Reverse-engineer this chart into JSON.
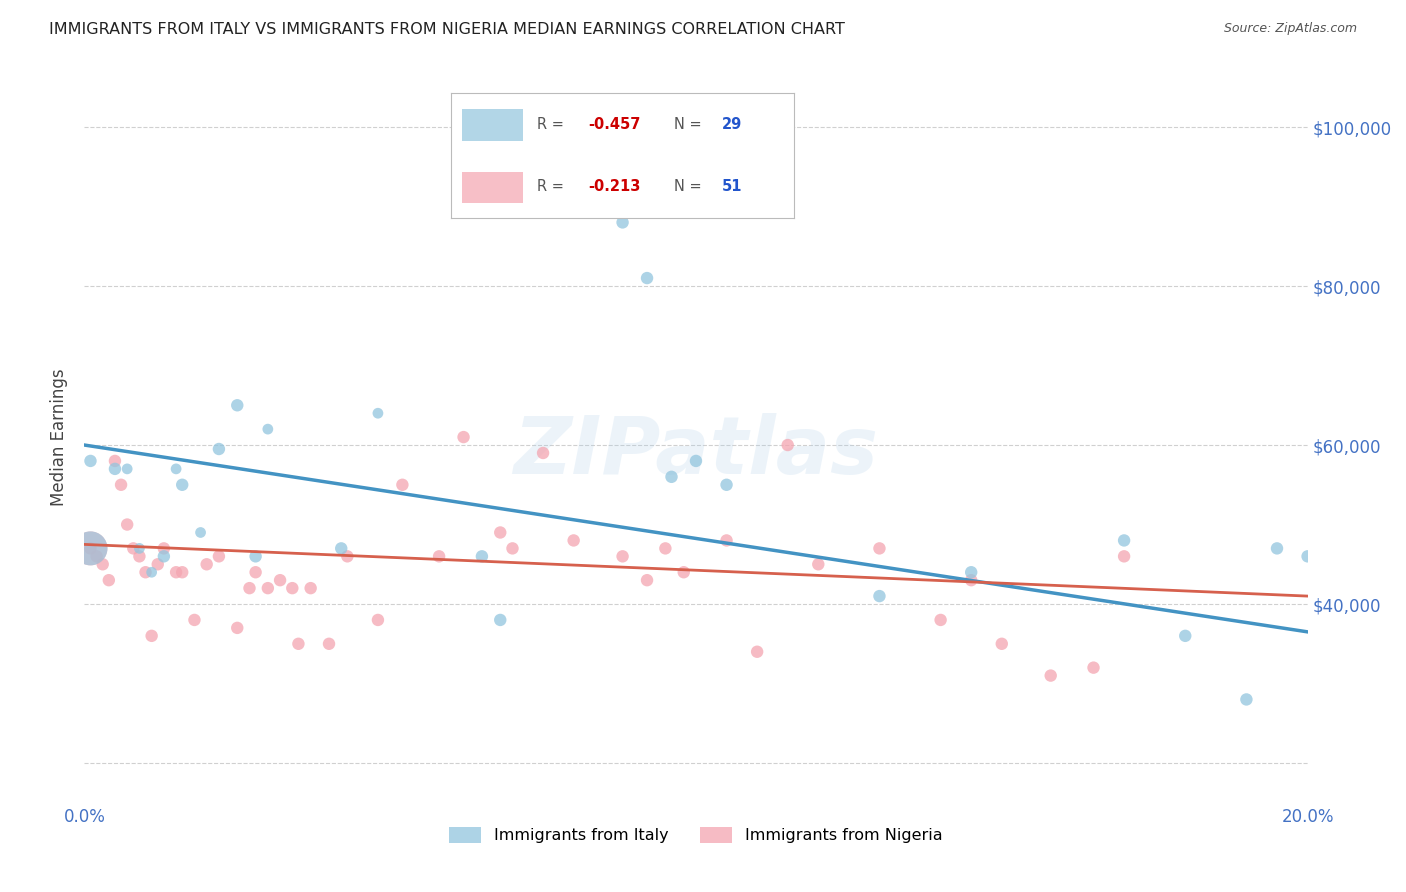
{
  "title": "IMMIGRANTS FROM ITALY VS IMMIGRANTS FROM NIGERIA MEDIAN EARNINGS CORRELATION CHART",
  "source": "Source: ZipAtlas.com",
  "ylabel": "Median Earnings",
  "ytick_values": [
    20000,
    40000,
    60000,
    80000,
    100000
  ],
  "ytick_labels": [
    "",
    "$40,000",
    "$60,000",
    "$80,000",
    "$100,000"
  ],
  "xmin": 0.0,
  "xmax": 0.2,
  "ymin": 15000,
  "ymax": 107000,
  "italy_color": "#92c5de",
  "italy_line_color": "#4393c3",
  "nigeria_color": "#f4a5b0",
  "nigeria_line_color": "#d6604d",
  "italy_R": "-0.457",
  "italy_N": "29",
  "nigeria_R": "-0.213",
  "nigeria_N": "51",
  "italy_line_x": [
    0.0,
    0.2
  ],
  "italy_line_y": [
    60000,
    36500
  ],
  "nigeria_line_x": [
    0.0,
    0.2
  ],
  "nigeria_line_y": [
    47500,
    41000
  ],
  "italy_x": [
    0.001,
    0.005,
    0.007,
    0.009,
    0.011,
    0.013,
    0.015,
    0.016,
    0.019,
    0.022,
    0.025,
    0.028,
    0.03,
    0.042,
    0.048,
    0.065,
    0.068,
    0.088,
    0.092,
    0.096,
    0.1,
    0.105,
    0.13,
    0.145,
    0.17,
    0.18,
    0.19,
    0.195,
    0.2
  ],
  "italy_y": [
    58000,
    57000,
    57000,
    47000,
    44000,
    46000,
    57000,
    55000,
    49000,
    59500,
    65000,
    46000,
    62000,
    47000,
    64000,
    46000,
    38000,
    88000,
    81000,
    56000,
    58000,
    55000,
    41000,
    44000,
    48000,
    36000,
    28000,
    47000,
    46000
  ],
  "italy_size": [
    80,
    80,
    60,
    60,
    60,
    80,
    60,
    80,
    60,
    80,
    80,
    80,
    60,
    80,
    60,
    80,
    80,
    80,
    80,
    80,
    80,
    80,
    80,
    80,
    80,
    80,
    80,
    80,
    80
  ],
  "italy_big_x": [
    0.001
  ],
  "italy_big_y": [
    47000
  ],
  "italy_big_size": [
    600
  ],
  "nigeria_x": [
    0.001,
    0.002,
    0.003,
    0.004,
    0.005,
    0.006,
    0.007,
    0.008,
    0.009,
    0.01,
    0.011,
    0.012,
    0.013,
    0.015,
    0.016,
    0.018,
    0.02,
    0.022,
    0.025,
    0.027,
    0.028,
    0.03,
    0.032,
    0.034,
    0.035,
    0.037,
    0.04,
    0.043,
    0.048,
    0.052,
    0.058,
    0.062,
    0.068,
    0.07,
    0.075,
    0.08,
    0.088,
    0.092,
    0.095,
    0.098,
    0.105,
    0.11,
    0.115,
    0.12,
    0.13,
    0.14,
    0.145,
    0.15,
    0.158,
    0.165,
    0.17
  ],
  "nigeria_y": [
    47000,
    46000,
    45000,
    43000,
    58000,
    55000,
    50000,
    47000,
    46000,
    44000,
    36000,
    45000,
    47000,
    44000,
    44000,
    38000,
    45000,
    46000,
    37000,
    42000,
    44000,
    42000,
    43000,
    42000,
    35000,
    42000,
    35000,
    46000,
    38000,
    55000,
    46000,
    61000,
    49000,
    47000,
    59000,
    48000,
    46000,
    43000,
    47000,
    44000,
    48000,
    34000,
    60000,
    45000,
    47000,
    38000,
    43000,
    35000,
    31000,
    32000,
    46000
  ],
  "nigeria_size": [
    80,
    80,
    80,
    80,
    80,
    80,
    80,
    80,
    80,
    80,
    80,
    80,
    80,
    80,
    80,
    80,
    80,
    80,
    80,
    80,
    80,
    80,
    80,
    80,
    80,
    80,
    80,
    80,
    80,
    80,
    80,
    80,
    80,
    80,
    80,
    80,
    80,
    80,
    80,
    80,
    80,
    80,
    80,
    80,
    80,
    80,
    80,
    80,
    80,
    80,
    80
  ],
  "nigeria_big_x": [
    0.001
  ],
  "nigeria_big_y": [
    47000
  ],
  "nigeria_big_size": [
    600
  ],
  "watermark": "ZIPatlas",
  "grid_color": "#d0d0d0",
  "tick_color": "#4472c4",
  "title_color": "#222222",
  "source_color": "#555555",
  "background_color": "#ffffff",
  "legend_italy_label": "Immigrants from Italy",
  "legend_nigeria_label": "Immigrants from Nigeria"
}
